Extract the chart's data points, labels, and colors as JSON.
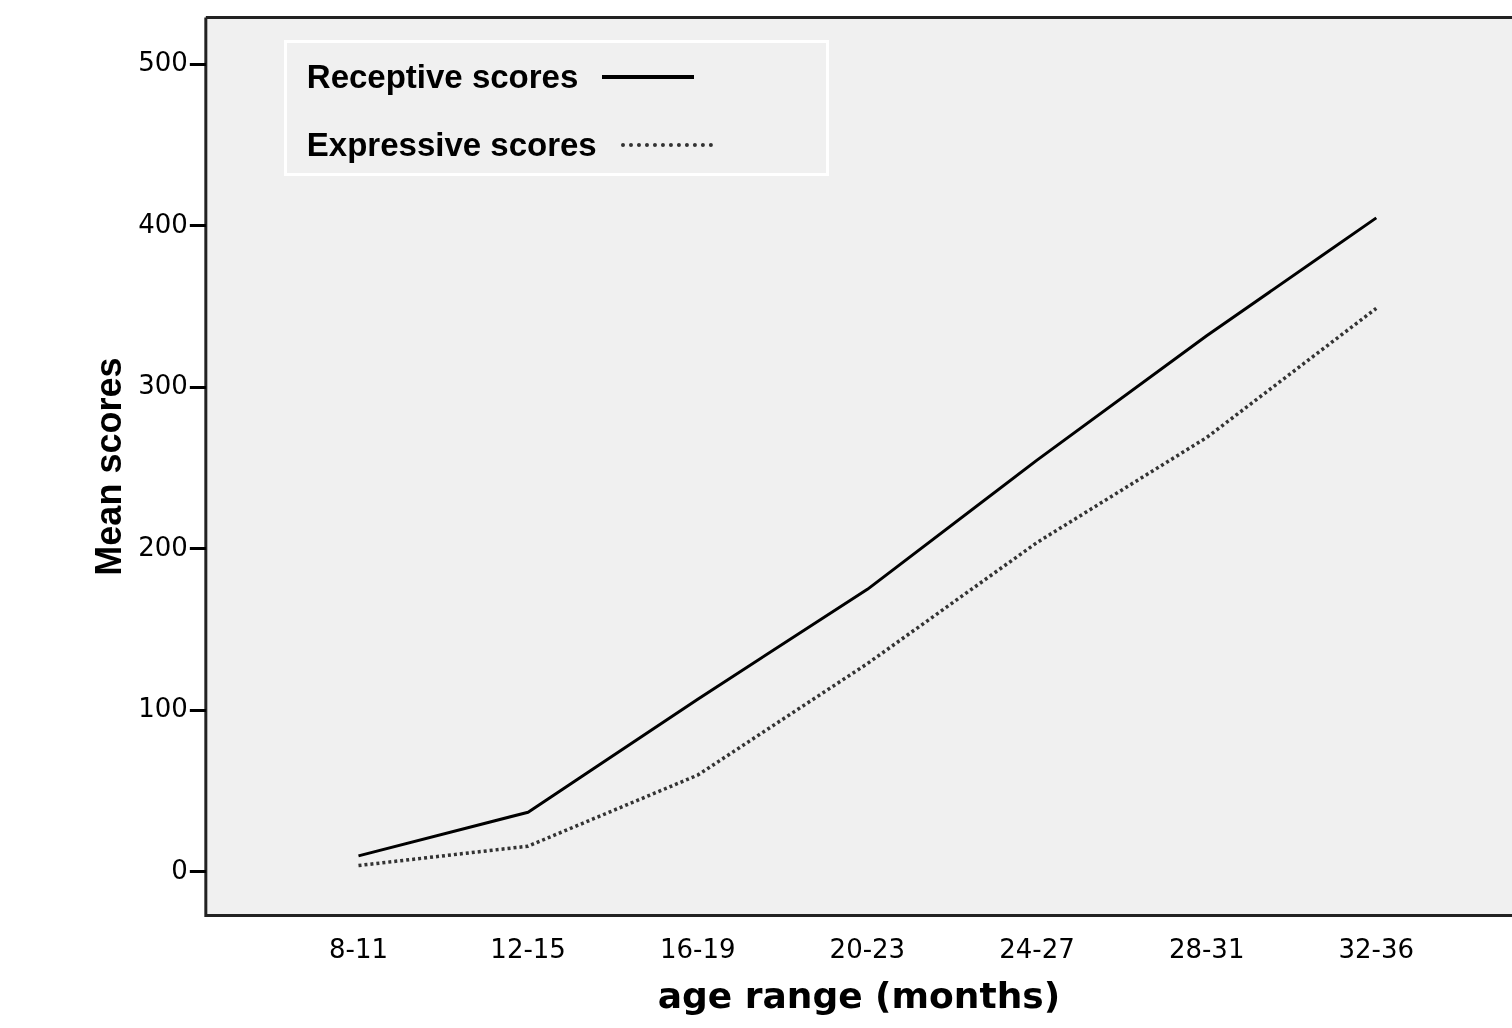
{
  "chart_data": {
    "type": "line",
    "xlabel": "age range (months)",
    "ylabel": "Mean scores",
    "categories": [
      "8-11",
      "12-15",
      "16-19",
      "20-23",
      "24-27",
      "28-31",
      "32-36"
    ],
    "series": [
      {
        "name": "Receptive scores",
        "color": "#000000",
        "line_style": "solid",
        "values": [
          10,
          37,
          107,
          175,
          255,
          332,
          405
        ]
      },
      {
        "name": "Expressive scores",
        "color": "#333333",
        "line_style": "dotted",
        "values": [
          4,
          16,
          60,
          129,
          204,
          269,
          349
        ]
      }
    ],
    "ylim": [
      -27,
      529
    ],
    "yticks": [
      0,
      100,
      200,
      300,
      400,
      500
    ],
    "grid": false,
    "legend": "top left",
    "marker": "none"
  }
}
